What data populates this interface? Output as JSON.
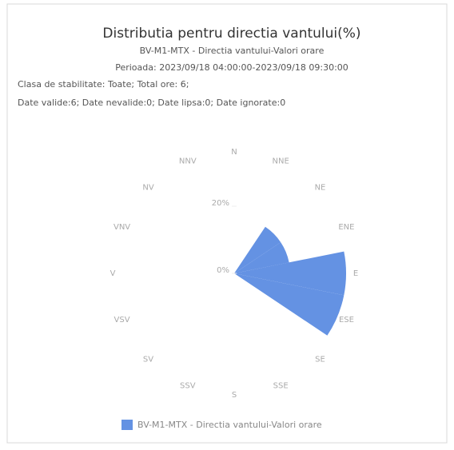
{
  "chart_data": {
    "type": "windrose",
    "title": "Distributia pentru directia vantului(%)",
    "subtitle": "BV-M1-MTX - Directia vantului-Valori orare",
    "period": "Perioada: 2023/09/18 04:00:00-2023/09/18 09:30:00",
    "info": [
      "Clasa de stabilitate: Toate; Total ore: 6;",
      "Date valide:6; Date nevalide:0; Date lipsa:0; Date ignorate:0"
    ],
    "categories": [
      "N",
      "NNE",
      "NE",
      "ENE",
      "E",
      "ESE",
      "SE",
      "SSE",
      "S",
      "SSV",
      "SV",
      "VSV",
      "V",
      "VNV",
      "NV",
      "NNV"
    ],
    "series": [
      {
        "name": "BV-M1-MTX - Directia vantului-Valori orare",
        "color": "#6492e3",
        "values": [
          0,
          0,
          16.67,
          16.67,
          33.33,
          33.33,
          0,
          0,
          0,
          0,
          0,
          0,
          0,
          0,
          0,
          0
        ]
      }
    ],
    "ylim": [
      0,
      33.33
    ],
    "yticks": [
      {
        "value": 0,
        "label": "0%"
      },
      {
        "value": 20,
        "label": "20%"
      }
    ]
  }
}
